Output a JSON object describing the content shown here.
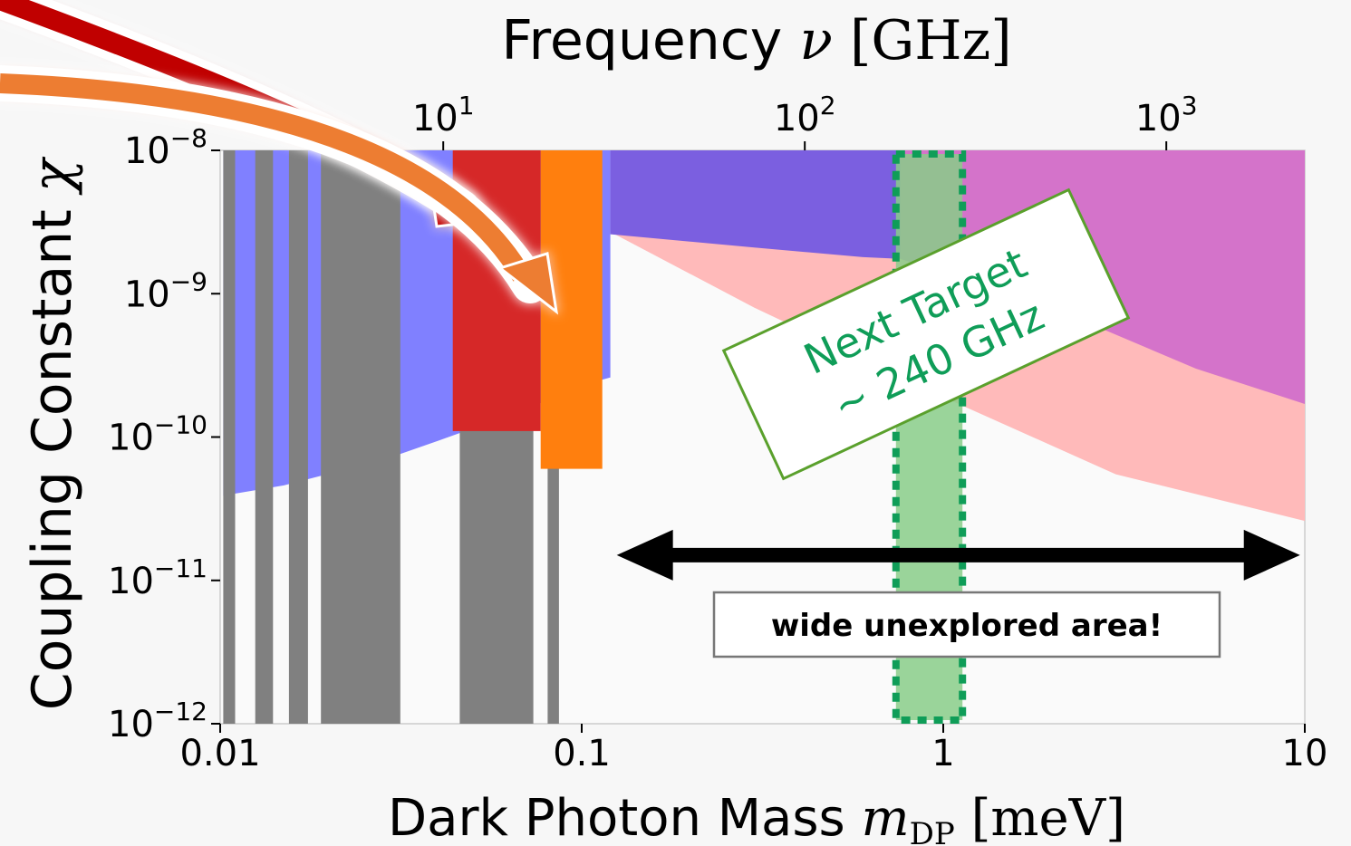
{
  "chart_data": {
    "type": "area",
    "title": "",
    "xlabel_prefix": "Dark Photon Mass ",
    "xlabel_var": "m",
    "xlabel_sub": "DP",
    "xlabel_unit": " [meV]",
    "ylabel_prefix": "Coupling Constant ",
    "ylabel_var": "χ",
    "top_label_prefix": "Frequency ",
    "top_label_var": "ν",
    "top_label_unit": " [GHz]",
    "x_scale": "log",
    "y_scale": "log",
    "xlim": [
      0.01,
      10
    ],
    "ylim": [
      1e-12,
      1e-08
    ],
    "x_ticks": [
      0.01,
      0.1,
      1,
      10
    ],
    "x_tick_labels": [
      "0.01",
      "0.1",
      "1",
      "10"
    ],
    "y_ticks": [
      1e-12,
      1e-11,
      1e-10,
      1e-09,
      1e-08
    ],
    "y_tick_mantissa": [
      "10",
      "10",
      "10",
      "10",
      "10"
    ],
    "y_tick_exp": [
      "−12",
      "−11",
      "−10",
      "−9",
      "−8"
    ],
    "top_ticks_ghz": [
      10,
      100,
      1000
    ],
    "top_tick_mantissa": [
      "10",
      "10",
      "10"
    ],
    "top_tick_exp": [
      "1",
      "2",
      "3"
    ],
    "top_tick_mass_mev": [
      0.0414,
      0.414,
      4.14
    ],
    "series": [
      {
        "color": "#8080ff",
        "points": [
          [
            0.0102,
            3.9e-11
          ],
          [
            0.015,
            4.6e-11
          ],
          [
            0.022,
            5.9e-11
          ],
          [
            0.03,
            7.3e-11
          ],
          [
            0.04,
            9.4e-11
          ],
          [
            0.05,
            1.15e-10
          ],
          [
            0.07,
            1.55e-10
          ],
          [
            0.1,
            2.3e-10
          ],
          [
            0.12,
            2.6e-10
          ]
        ],
        "lower_edge_only": true
      },
      {
        "color": "#7b5fe0",
        "points": [
          [
            0.12,
            2.6e-09
          ],
          [
            0.3,
            2.1e-09
          ],
          [
            0.6,
            1.8e-09
          ],
          [
            0.76,
            1.75e-09
          ]
        ]
      },
      {
        "color": "#ffbaba",
        "points": [
          [
            0.12,
            2.7e-09
          ],
          [
            0.3,
            8e-10
          ],
          [
            1.0,
            1.9e-10
          ],
          [
            3.0,
            5.5e-11
          ],
          [
            10,
            2.6e-11
          ]
        ]
      },
      {
        "color": "#cc66cc",
        "points": [
          [
            0.76,
            1.75e-09
          ],
          [
            2.0,
            8e-10
          ],
          [
            5.0,
            3e-10
          ],
          [
            10,
            1.7e-10
          ]
        ]
      },
      {
        "color": "#808080",
        "bands": [
          [
            0.0102,
            0.011
          ],
          [
            0.0125,
            0.014
          ],
          [
            0.0155,
            0.0175
          ],
          [
            0.019,
            0.0315
          ],
          [
            0.046,
            0.0735
          ],
          [
            0.0805,
            0.0865
          ]
        ]
      },
      {
        "color": "#d62828",
        "points": [
          [
            0.044,
            1.1e-10
          ],
          [
            0.077,
            1.3e-10
          ]
        ],
        "band": [
          0.044,
          0.077
        ]
      },
      {
        "color": "#ff7f0e",
        "points": [
          [
            0.077,
            6e-11
          ],
          [
            0.114,
            8e-11
          ]
        ],
        "band": [
          0.077,
          0.114
        ]
      }
    ],
    "target_band_mev": [
      0.74,
      1.13
    ],
    "target_label_line1": "Next Target",
    "target_label_line2": "~ 240 GHz",
    "range_label": "wide unexplored area!",
    "range_arrow_mev": [
      0.125,
      9.7
    ],
    "range_arrow_y": 1.5e-11
  },
  "colors": {
    "background": "#f7f7f7",
    "plot_bg": "#fafafa",
    "red_arrow": "#c00000",
    "orange_arrow": "#ed7d31",
    "target_green": "#0f9d58",
    "target_fill": "#88cc88",
    "label_border": "#5aa02c"
  }
}
